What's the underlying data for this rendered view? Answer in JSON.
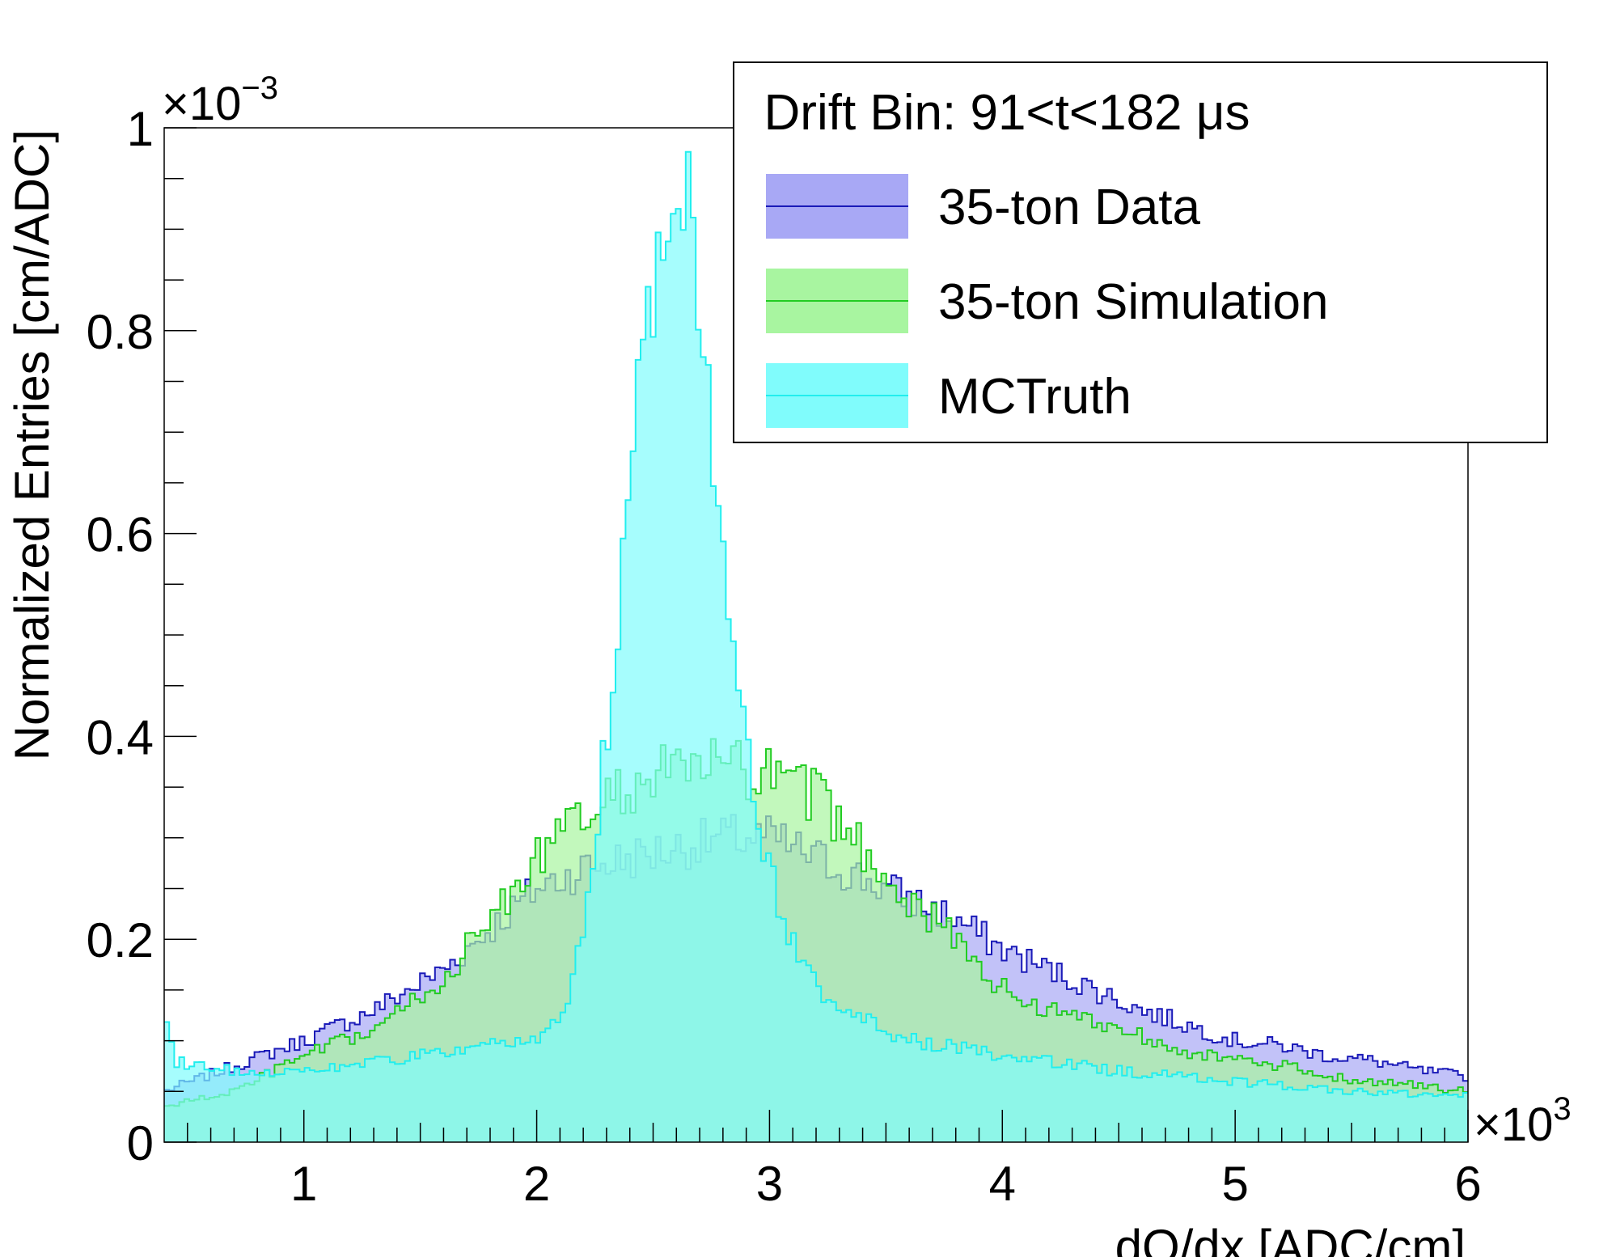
{
  "chart_data": {
    "type": "area",
    "xlabel": "dQ/dx [ADC/cm]",
    "ylabel": "Normalized Entries [cm/ADC]",
    "x_multiplier": "×10",
    "x_multiplier_exp": "3",
    "y_multiplier": "×10",
    "y_multiplier_exp": "−3",
    "xlim": [
      0.4,
      6.0
    ],
    "ylim": [
      0,
      1.0
    ],
    "x_ticks": [
      "1",
      "2",
      "3",
      "4",
      "5",
      "6"
    ],
    "y_ticks": [
      "0",
      "0.2",
      "0.4",
      "0.6",
      "0.8",
      "1"
    ],
    "legend": {
      "title": "Drift Bin: 91<t<182 μs",
      "position": "top-right"
    },
    "series": [
      {
        "name": "35-ton Data",
        "fill": "#a8a8f5",
        "line": "#1a1ab8",
        "anchors": [
          [
            0.4,
            0.05
          ],
          [
            0.7,
            0.075
          ],
          [
            1.0,
            0.1
          ],
          [
            1.3,
            0.13
          ],
          [
            1.6,
            0.17
          ],
          [
            1.9,
            0.23
          ],
          [
            2.0,
            0.25
          ],
          [
            2.2,
            0.27
          ],
          [
            2.4,
            0.28
          ],
          [
            2.6,
            0.29
          ],
          [
            2.8,
            0.3
          ],
          [
            3.0,
            0.3
          ],
          [
            3.2,
            0.28
          ],
          [
            3.4,
            0.26
          ],
          [
            3.6,
            0.24
          ],
          [
            3.8,
            0.22
          ],
          [
            4.0,
            0.19
          ],
          [
            4.2,
            0.17
          ],
          [
            4.4,
            0.15
          ],
          [
            4.6,
            0.13
          ],
          [
            4.8,
            0.115
          ],
          [
            5.0,
            0.1
          ],
          [
            5.2,
            0.095
          ],
          [
            5.4,
            0.085
          ],
          [
            5.6,
            0.08
          ],
          [
            5.8,
            0.07
          ],
          [
            6.0,
            0.065
          ]
        ]
      },
      {
        "name": "35-ton Simulation",
        "fill": "#a8f5a0",
        "line": "#22cc22",
        "anchors": [
          [
            0.4,
            0.035
          ],
          [
            0.7,
            0.05
          ],
          [
            1.0,
            0.085
          ],
          [
            1.3,
            0.11
          ],
          [
            1.6,
            0.16
          ],
          [
            1.9,
            0.25
          ],
          [
            2.0,
            0.28
          ],
          [
            2.2,
            0.32
          ],
          [
            2.4,
            0.35
          ],
          [
            2.6,
            0.37
          ],
          [
            2.8,
            0.37
          ],
          [
            3.0,
            0.36
          ],
          [
            3.2,
            0.34
          ],
          [
            3.4,
            0.29
          ],
          [
            3.6,
            0.24
          ],
          [
            3.8,
            0.2
          ],
          [
            4.0,
            0.15
          ],
          [
            4.2,
            0.13
          ],
          [
            4.4,
            0.12
          ],
          [
            4.6,
            0.105
          ],
          [
            4.8,
            0.09
          ],
          [
            5.0,
            0.08
          ],
          [
            5.2,
            0.075
          ],
          [
            5.4,
            0.065
          ],
          [
            5.6,
            0.06
          ],
          [
            5.8,
            0.055
          ],
          [
            6.0,
            0.05
          ]
        ]
      },
      {
        "name": "MCTruth",
        "fill": "#80fcfc",
        "line": "#22eeee",
        "anchors": [
          [
            0.4,
            0.13
          ],
          [
            0.45,
            0.08
          ],
          [
            0.7,
            0.07
          ],
          [
            1.0,
            0.07
          ],
          [
            1.5,
            0.085
          ],
          [
            2.0,
            0.1
          ],
          [
            2.1,
            0.12
          ],
          [
            2.2,
            0.2
          ],
          [
            2.25,
            0.3
          ],
          [
            2.3,
            0.4
          ],
          [
            2.35,
            0.5
          ],
          [
            2.4,
            0.65
          ],
          [
            2.45,
            0.75
          ],
          [
            2.5,
            0.86
          ],
          [
            2.55,
            0.92
          ],
          [
            2.6,
            0.95
          ],
          [
            2.65,
            0.92
          ],
          [
            2.7,
            0.85
          ],
          [
            2.75,
            0.72
          ],
          [
            2.8,
            0.57
          ],
          [
            2.85,
            0.48
          ],
          [
            2.9,
            0.4
          ],
          [
            2.95,
            0.32
          ],
          [
            3.0,
            0.27
          ],
          [
            3.05,
            0.23
          ],
          [
            3.1,
            0.2
          ],
          [
            3.2,
            0.15
          ],
          [
            3.4,
            0.12
          ],
          [
            3.6,
            0.1
          ],
          [
            4.0,
            0.085
          ],
          [
            4.5,
            0.07
          ],
          [
            5.0,
            0.06
          ],
          [
            5.5,
            0.05
          ],
          [
            6.0,
            0.045
          ]
        ]
      }
    ]
  }
}
